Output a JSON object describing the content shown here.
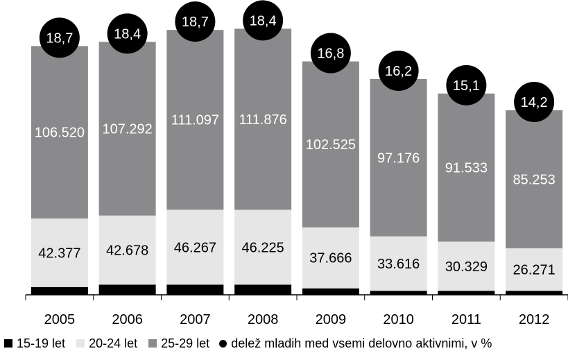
{
  "chart_data": {
    "type": "bar",
    "stacked": true,
    "categories": [
      "2005",
      "2006",
      "2007",
      "2008",
      "2009",
      "2010",
      "2011",
      "2012"
    ],
    "series": [
      {
        "name": "15-19 let",
        "color": "#000000",
        "values": [
          4800,
          6300,
          6300,
          6300,
          4000,
          2500,
          2500,
          2500
        ]
      },
      {
        "name": "20-24 let",
        "color": "#e6e6e6",
        "values": [
          42377,
          42678,
          46267,
          46225,
          37666,
          33616,
          30329,
          26271
        ],
        "labels": [
          "42.377",
          "42.678",
          "46.267",
          "46.225",
          "37.666",
          "33.616",
          "30.329",
          "26.271"
        ]
      },
      {
        "name": "25-29 let",
        "color": "#8a8a8c",
        "values": [
          106520,
          107292,
          111097,
          111876,
          102525,
          97176,
          91533,
          85253
        ],
        "labels": [
          "106.520",
          "107.292",
          "111.097",
          "111.876",
          "102.525",
          "97.176",
          "91.533",
          "85.253"
        ]
      }
    ],
    "share": {
      "name": "delež mladih med vsemi delovno aktivnimi, v %",
      "values": [
        "18,7",
        "18,4",
        "18,7",
        "18,4",
        "16,8",
        "16,2",
        "15,1",
        "14,2"
      ]
    },
    "ylim": [
      0,
      165000
    ],
    "legend_position": "bottom"
  }
}
